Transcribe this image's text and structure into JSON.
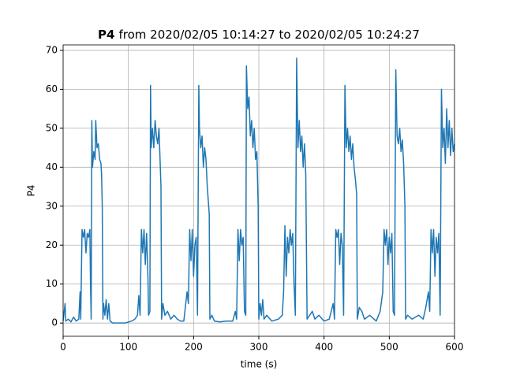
{
  "chart_data": {
    "type": "line",
    "title": [
      "P4",
      "from 2020/02/05 10:14:27 to 2020/02/05 10:24:27"
    ],
    "x_label": "time (s)",
    "y_label": "P4",
    "xlim": [
      0,
      600
    ],
    "ylim": [
      -3.4,
      71.4
    ],
    "xticks": [
      0,
      100,
      200,
      300,
      400,
      500,
      600
    ],
    "yticks": [
      0,
      10,
      20,
      30,
      40,
      50,
      60,
      70
    ],
    "grid": true,
    "series": [
      {
        "color": "#1f77b4",
        "x": [
          0,
          3,
          4,
          8,
          12,
          16,
          20,
          24,
          26,
          27,
          29,
          31,
          33,
          35,
          37,
          39,
          41,
          42,
          43,
          44,
          45,
          47,
          49,
          50,
          52,
          54,
          56,
          58,
          59,
          60,
          61,
          62,
          64,
          66,
          68,
          70,
          72,
          76,
          85,
          95,
          105,
          110,
          114,
          116,
          118,
          120,
          122,
          124,
          126,
          128,
          130,
          131,
          133,
          134,
          135,
          137,
          139,
          141,
          143,
          145,
          147,
          149,
          150,
          151,
          153,
          156,
          160,
          165,
          170,
          175,
          180,
          185,
          190,
          192,
          194,
          196,
          198,
          200,
          202,
          204,
          206,
          208,
          209,
          211,
          213,
          215,
          217,
          219,
          221,
          224,
          225,
          228,
          232,
          240,
          250,
          260,
          264,
          266,
          268,
          270,
          272,
          274,
          276,
          278,
          280,
          281,
          283,
          285,
          287,
          289,
          291,
          293,
          295,
          297,
          299,
          300,
          302,
          304,
          306,
          308,
          312,
          320,
          330,
          336,
          338,
          340,
          342,
          344,
          346,
          348,
          350,
          352,
          354,
          356,
          358,
          360,
          362,
          364,
          366,
          368,
          370,
          372,
          374,
          378,
          382,
          386,
          392,
          400,
          408,
          414,
          416,
          418,
          420,
          422,
          424,
          426,
          428,
          430,
          432,
          434,
          436,
          438,
          440,
          442,
          444,
          446,
          448,
          450,
          451,
          454,
          458,
          462,
          470,
          480,
          486,
          490,
          492,
          494,
          496,
          498,
          500,
          502,
          504,
          506,
          508,
          510,
          512,
          514,
          516,
          518,
          520,
          522,
          524,
          525,
          528,
          535,
          545,
          552,
          556,
          560,
          562,
          564,
          566,
          568,
          570,
          572,
          574,
          576,
          578,
          580,
          582,
          584,
          586,
          588,
          590,
          592,
          594,
          596,
          598,
          600
        ],
        "values": [
          0.5,
          5,
          0.5,
          1,
          0.3,
          1.5,
          0.5,
          1,
          8,
          1,
          24,
          22,
          24,
          18,
          23,
          22,
          24,
          10,
          1,
          52,
          40,
          44,
          42,
          52,
          45,
          46,
          42,
          41,
          38,
          30,
          1,
          5,
          2,
          6,
          1,
          5,
          0.5,
          0,
          0,
          0,
          0.5,
          1,
          2,
          7,
          2,
          24,
          18,
          24,
          15,
          23,
          12,
          2,
          3,
          61,
          45,
          50,
          45,
          52,
          48,
          46,
          50,
          40,
          35,
          1,
          5,
          2,
          3,
          1,
          2,
          1,
          0.5,
          0.5,
          8,
          5,
          24,
          16,
          24,
          12,
          20,
          22,
          2,
          61,
          50,
          45,
          48,
          40,
          45,
          42,
          35,
          28,
          1,
          2,
          0.5,
          0.3,
          0.5,
          0.5,
          3,
          1,
          24,
          16,
          24,
          20,
          22,
          3,
          2,
          66,
          55,
          58,
          48,
          52,
          45,
          50,
          42,
          44,
          30,
          1,
          5,
          2,
          6,
          1,
          2,
          0.5,
          1,
          2,
          8,
          25,
          12,
          22,
          18,
          24,
          20,
          23,
          10,
          2,
          68,
          45,
          52,
          44,
          48,
          40,
          46,
          38,
          1,
          2,
          3,
          1,
          2,
          0.5,
          1,
          5,
          1,
          24,
          22,
          24,
          15,
          23,
          20,
          2,
          61,
          45,
          50,
          44,
          48,
          42,
          46,
          40,
          37,
          33,
          1,
          4,
          3,
          1,
          2,
          0.5,
          3,
          8,
          24,
          20,
          24,
          15,
          22,
          18,
          23,
          3,
          2,
          65,
          48,
          46,
          50,
          44,
          47,
          41,
          30,
          1,
          2,
          1,
          2,
          1,
          4,
          8,
          3,
          24,
          18,
          24,
          12,
          22,
          18,
          23,
          2,
          60,
          45,
          50,
          41,
          55,
          45,
          52,
          43,
          50,
          44,
          46
        ]
      }
    ]
  }
}
